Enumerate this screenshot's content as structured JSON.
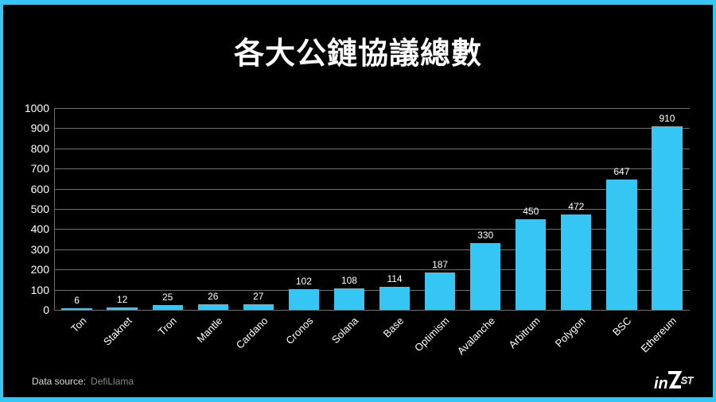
{
  "title": "各大公鏈協議總數",
  "source": {
    "label": "Data source:",
    "value": "DefiLlama"
  },
  "logo": {
    "text": "inZest"
  },
  "colors": {
    "bar": "#35c6f3",
    "background": "#000000",
    "frame": "#35c6f3",
    "grid": "#6e6e6e"
  },
  "chart_data": {
    "type": "bar",
    "title": "各大公鏈協議總數",
    "xlabel": "",
    "ylabel": "",
    "ylim": [
      0,
      1000
    ],
    "yticks": [
      0,
      100,
      200,
      300,
      400,
      500,
      600,
      700,
      800,
      900,
      1000
    ],
    "grid": true,
    "legend": "none",
    "categories": [
      "Ton",
      "Staknet",
      "Tron",
      "Mantle",
      "Cardano",
      "Cronos",
      "Solana",
      "Base",
      "Optimism",
      "Avalanche",
      "Arbitrum",
      "Polygon",
      "BSC",
      "Ethereum"
    ],
    "values": [
      6,
      12,
      25,
      26,
      27,
      102,
      108,
      114,
      187,
      330,
      450,
      472,
      647,
      910
    ]
  }
}
